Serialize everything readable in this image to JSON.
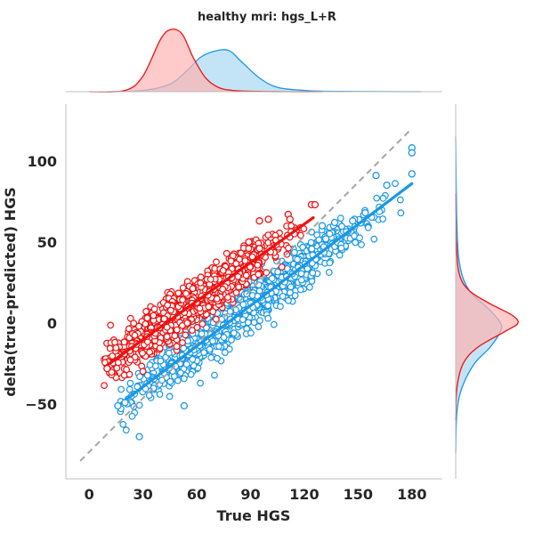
{
  "colors": {
    "red": "#ee1111",
    "blue": "#1a97e4",
    "red_fill": "#ffb3b3",
    "blue_fill": "#a9d8f2",
    "identity_line": "#a6a6a6",
    "axis": "#bfbfbf"
  },
  "chart_data": {
    "type": "scatter",
    "title": "healthy mri: hgs_L+R",
    "xlabel": "True HGS",
    "ylabel": "delta(true-predicted) HGS",
    "xlim": [
      -13,
      197
    ],
    "ylim": [
      -96,
      135
    ],
    "xticks": [
      "0",
      "30",
      "60",
      "90",
      "120",
      "150",
      "180"
    ],
    "xtick_values": [
      0,
      30,
      60,
      90,
      120,
      150,
      180
    ],
    "yticks": [
      "−50",
      "0",
      "50",
      "100"
    ],
    "ytick_values": [
      -50,
      0,
      50,
      100
    ],
    "grid": false,
    "series": [
      {
        "color_key": "red",
        "x_range": [
          8,
          125
        ],
        "fit": {
          "x": [
            10,
            125
          ],
          "y": [
            -26,
            65
          ]
        },
        "outliers": [
          {
            "x": 10,
            "y": -28
          },
          {
            "x": 95,
            "y": 63
          },
          {
            "x": 100,
            "y": 64
          },
          {
            "x": 111,
            "y": 67
          },
          {
            "x": 112,
            "y": 64
          },
          {
            "x": 124,
            "y": 73
          },
          {
            "x": 126,
            "y": 73
          },
          {
            "x": 89,
            "y": 50
          },
          {
            "x": 95,
            "y": 46
          }
        ]
      },
      {
        "color_key": "blue",
        "x_range": [
          16,
          180
        ],
        "fit": {
          "x": [
            16,
            180
          ],
          "y": [
            -51,
            86
          ]
        },
        "outliers": [
          {
            "x": 28,
            "y": -70
          },
          {
            "x": 53,
            "y": -51
          },
          {
            "x": 16,
            "y": -51
          },
          {
            "x": 20,
            "y": -49
          },
          {
            "x": 130,
            "y": 60
          },
          {
            "x": 137,
            "y": 62
          },
          {
            "x": 148,
            "y": 64
          },
          {
            "x": 154,
            "y": 68
          },
          {
            "x": 147,
            "y": 63
          },
          {
            "x": 160,
            "y": 91
          },
          {
            "x": 166,
            "y": 85
          },
          {
            "x": 180,
            "y": 108
          },
          {
            "x": 180,
            "y": 105
          },
          {
            "x": 180,
            "y": 92
          },
          {
            "x": 132,
            "y": 52
          }
        ]
      }
    ],
    "identity_line": {
      "x": [
        -5,
        180
      ],
      "y": [
        -85,
        120
      ]
    },
    "marginal_top": {
      "red": {
        "x": [
          0,
          20,
          30,
          40,
          46,
          52,
          58,
          65,
          72,
          80,
          95,
          110,
          130
        ],
        "density": [
          0,
          0.02,
          0.25,
          0.85,
          1.0,
          0.92,
          0.55,
          0.22,
          0.07,
          0.02,
          0.005,
          0,
          0
        ]
      },
      "blue": {
        "x": [
          10,
          30,
          45,
          55,
          62,
          70,
          78,
          85,
          95,
          105,
          120,
          140,
          185
        ],
        "density": [
          0,
          0.02,
          0.12,
          0.35,
          0.55,
          0.65,
          0.66,
          0.48,
          0.22,
          0.07,
          0.02,
          0.005,
          0
        ]
      }
    },
    "marginal_right": {
      "red": {
        "y": [
          -60,
          -40,
          -25,
          -15,
          -5,
          0,
          5,
          12,
          20,
          30,
          50,
          80
        ],
        "density": [
          0,
          0.02,
          0.12,
          0.35,
          0.8,
          1.0,
          0.9,
          0.55,
          0.22,
          0.06,
          0.01,
          0
        ]
      },
      "blue": {
        "y": [
          -80,
          -55,
          -40,
          -25,
          -15,
          -5,
          0,
          8,
          20,
          35,
          60,
          115
        ],
        "density": [
          0,
          0.02,
          0.1,
          0.3,
          0.55,
          0.72,
          0.72,
          0.55,
          0.22,
          0.07,
          0.02,
          0
        ]
      }
    }
  }
}
